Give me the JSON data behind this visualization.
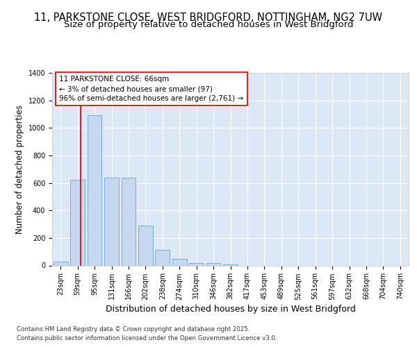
{
  "title_line1": "11, PARKSTONE CLOSE, WEST BRIDGFORD, NOTTINGHAM, NG2 7UW",
  "title_line2": "Size of property relative to detached houses in West Bridgford",
  "xlabel": "Distribution of detached houses by size in West Bridgford",
  "ylabel": "Number of detached properties",
  "categories": [
    "23sqm",
    "59sqm",
    "95sqm",
    "131sqm",
    "166sqm",
    "202sqm",
    "238sqm",
    "274sqm",
    "310sqm",
    "346sqm",
    "382sqm",
    "417sqm",
    "453sqm",
    "489sqm",
    "525sqm",
    "561sqm",
    "597sqm",
    "632sqm",
    "668sqm",
    "704sqm",
    "740sqm"
  ],
  "values": [
    30,
    625,
    1090,
    640,
    640,
    290,
    115,
    50,
    20,
    20,
    10,
    0,
    0,
    0,
    0,
    0,
    0,
    0,
    0,
    0,
    0
  ],
  "bar_color": "#c5d8f0",
  "bar_edge_color": "#7aadd4",
  "plot_bg_color": "#dce8f5",
  "fig_bg_color": "#ffffff",
  "grid_color": "#ffffff",
  "property_line_color": "#cc0000",
  "annotation_text": "11 PARKSTONE CLOSE: 66sqm\n← 3% of detached houses are smaller (97)\n96% of semi-detached houses are larger (2,761) →",
  "annotation_box_edgecolor": "#cc0000",
  "annotation_box_facecolor": "#ffffff",
  "ylim": [
    0,
    1400
  ],
  "yticks": [
    0,
    200,
    400,
    600,
    800,
    1000,
    1200,
    1400
  ],
  "footnote": "Contains HM Land Registry data © Crown copyright and database right 2025.\nContains public sector information licensed under the Open Government Licence v3.0.",
  "title_fontsize": 10.5,
  "subtitle_fontsize": 9.5,
  "ylabel_fontsize": 8.5,
  "xlabel_fontsize": 9,
  "tick_fontsize": 7,
  "annot_fontsize": 7.5,
  "footnote_fontsize": 6.2
}
